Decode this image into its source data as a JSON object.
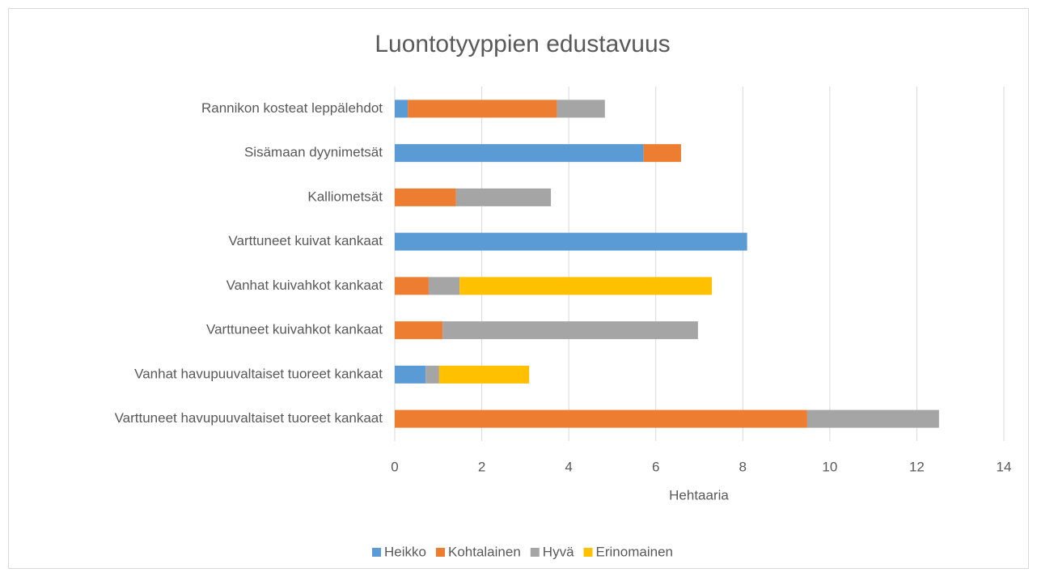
{
  "chart_data": {
    "type": "stacked-bar-horizontal",
    "title": "Luontotyyppien edustavuus",
    "x_label": "Hehtaaria",
    "categories": [
      "Rannikon kosteat leppälehdot",
      "Sisämaan dyynimetsät",
      "Kalliometsät",
      "Varttuneet kuivat kankaat",
      "Vanhat kuivahkot kankaat",
      "Varttuneet kuivahkot kankaat",
      "Vanhat havupuuvaltaiset tuoreet kankaat",
      "Varttuneet havupuuvaltaiset tuoreet kankaat"
    ],
    "series": [
      {
        "name": "Heikko",
        "color": "#5b9bd5",
        "values": [
          0.3,
          5.72,
          0,
          8.1,
          0,
          0,
          0.71,
          0
        ]
      },
      {
        "name": "Kohtalainen",
        "color": "#ed7d31",
        "values": [
          3.43,
          0.86,
          1.41,
          0,
          0.78,
          1.1,
          0,
          9.48
        ]
      },
      {
        "name": "Hyvä",
        "color": "#a5a5a5",
        "values": [
          1.1,
          0,
          2.18,
          0,
          0.71,
          5.87,
          0.31,
          3.03
        ]
      },
      {
        "name": "Erinomainen",
        "color": "#ffc000",
        "values": [
          0,
          0,
          0,
          0,
          5.8,
          0,
          2.07,
          0
        ]
      }
    ],
    "xlim": [
      0,
      14
    ],
    "xticks": [
      0,
      2,
      4,
      6,
      8,
      10,
      12,
      14
    ],
    "grid": true,
    "legend": "bottom"
  }
}
